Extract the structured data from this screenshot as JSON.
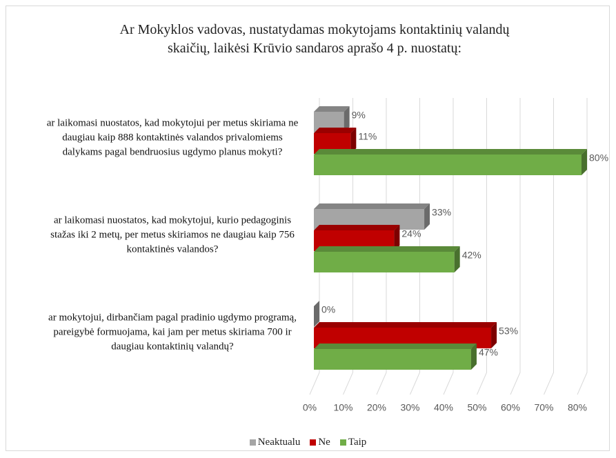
{
  "chart_data": {
    "type": "bar3d_horizontal",
    "title": "Ar Mokyklos vadovas, nustatydamas mokytojams kontaktinių valandų\nskaičių, laikėsi  Krūvio sandaros aprašo 4 p. nuostatų:",
    "categories": [
      "ar laikomasi nuostatos, kad mokytojui per metus skiriama ne daugiau kaip 888 kontaktinės valandos privalomiems dalykams pagal bendruosius ugdymo planus mokyti?",
      "ar laikomasi nuostatos, kad mokytojui, kurio pedagoginis stažas iki 2 metų, per metus skiriamos ne daugiau kaip 756 kontaktinės valandos?",
      "ar mokytojui, dirbančiam pagal pradinio ugdymo programą, pareigybė formuojama, kai jam per metus skiriama 700 ir daugiau kontaktinių valandų?"
    ],
    "series": [
      {
        "name": "Neaktualu",
        "color": "#a5a5a5",
        "values": [
          9,
          33,
          0
        ],
        "value_labels": [
          "9%",
          "33%",
          "0%"
        ]
      },
      {
        "name": "Ne",
        "color": "#c00000",
        "values": [
          11,
          24,
          53
        ],
        "value_labels": [
          "11%",
          "24%",
          "53%"
        ]
      },
      {
        "name": "Taip",
        "color": "#70ad47",
        "values": [
          80,
          42,
          47
        ],
        "value_labels": [
          "80%",
          "42%",
          "47%"
        ]
      }
    ],
    "xlim": [
      0,
      80
    ],
    "xticks": [
      {
        "value": 0,
        "label": "0%"
      },
      {
        "value": 10,
        "label": "10%"
      },
      {
        "value": 20,
        "label": "20%"
      },
      {
        "value": 30,
        "label": "30%"
      },
      {
        "value": 40,
        "label": "40%"
      },
      {
        "value": 50,
        "label": "50%"
      },
      {
        "value": 60,
        "label": "60%"
      },
      {
        "value": 70,
        "label": "70%"
      },
      {
        "value": 80,
        "label": "80%"
      }
    ],
    "grid": true,
    "legend": "bottom"
  }
}
